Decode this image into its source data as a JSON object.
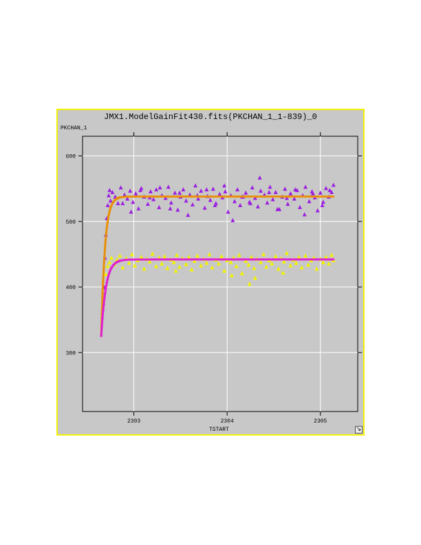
{
  "window": {
    "title": "JMX1.ModelGainFit430.fits(PKCHAN_1_1-839)_0",
    "resize_icon": "diagonal-arrow-icon",
    "background": "#c8c8c8",
    "border_color": "#f2f200"
  },
  "chart_data": {
    "type": "scatter",
    "title": "JMX1.ModelGainFit430.fits(PKCHAN_1_1-839)_0",
    "xlabel": "TSTART",
    "ylabel": "PKCHAN_1",
    "xlim": [
      2302.45,
      2305.4
    ],
    "ylim": [
      210,
      630
    ],
    "xticks": [
      2303,
      2304,
      2305
    ],
    "yticks": [
      300,
      400,
      500,
      600
    ],
    "grid": true,
    "series": [
      {
        "kind": "scatter",
        "marker": "triangle",
        "color": "#9b1fe0",
        "x": [
          2302.68,
          2302.69,
          2302.7,
          2302.71,
          2302.72,
          2302.73,
          2302.74,
          2302.75,
          2302.77,
          2302.8,
          2302.83,
          2302.86,
          2302.9,
          2302.93,
          2302.96,
          2302.99,
          2303.02,
          2303.05,
          2303.08,
          2303.11,
          2303.15,
          2303.18,
          2303.21,
          2303.24,
          2303.27,
          2303.3,
          2303.34,
          2303.37,
          2303.4,
          2303.44,
          2303.47,
          2303.5,
          2303.53,
          2303.56,
          2303.6,
          2303.63,
          2303.66,
          2303.69,
          2303.72,
          2303.76,
          2303.79,
          2303.82,
          2303.85,
          2303.88,
          2303.92,
          2303.95,
          2303.98,
          2304.01,
          2304.04,
          2304.08,
          2304.11,
          2304.14,
          2304.17,
          2304.2,
          2304.24,
          2304.27,
          2304.3,
          2304.33,
          2304.36,
          2304.4,
          2304.43,
          2304.46,
          2304.49,
          2304.52,
          2304.56,
          2304.59,
          2304.62,
          2304.65,
          2304.68,
          2304.72,
          2304.75,
          2304.78,
          2304.81,
          2304.84,
          2304.88,
          2304.91,
          2304.94,
          2304.97,
          2305.0,
          2305.03,
          2305.06,
          2305.09,
          2305.12,
          2305.14,
          2302.88,
          2302.97,
          2303.07,
          2303.17,
          2303.28,
          2303.39,
          2303.49,
          2303.58,
          2303.68,
          2303.78,
          2303.87,
          2303.97,
          2304.06,
          2304.16,
          2304.25,
          2304.35,
          2304.45,
          2304.54,
          2304.64,
          2304.73,
          2304.83,
          2304.92,
          2305.02,
          2305.1
        ],
        "y": [
          400,
          445,
          480,
          505,
          525,
          540,
          548,
          532,
          545,
          538,
          528,
          552,
          541,
          535,
          547,
          530,
          543,
          520,
          551,
          538,
          527,
          546,
          534,
          549,
          522,
          540,
          536,
          553,
          529,
          544,
          518,
          538,
          549,
          532,
          541,
          526,
          555,
          535,
          547,
          521,
          539,
          533,
          550,
          528,
          542,
          537,
          546,
          515,
          540,
          531,
          549,
          525,
          538,
          544,
          530,
          552,
          536,
          523,
          547,
          541,
          529,
          553,
          534,
          545,
          519,
          538,
          550,
          527,
          543,
          535,
          548,
          522,
          540,
          553,
          531,
          546,
          537,
          517,
          544,
          530,
          551,
          538,
          545,
          556,
          528,
          515,
          548,
          537,
          552,
          520,
          544,
          510,
          540,
          549,
          525,
          555,
          502,
          538,
          528,
          567,
          545,
          519,
          536,
          549,
          511,
          543,
          525,
          548
        ]
      },
      {
        "kind": "scatter",
        "marker": "triangle",
        "color": "#f2f200",
        "x": [
          2302.7,
          2302.72,
          2302.74,
          2302.76,
          2302.79,
          2302.82,
          2302.85,
          2302.88,
          2302.92,
          2302.95,
          2302.98,
          2303.01,
          2303.04,
          2303.08,
          2303.11,
          2303.14,
          2303.17,
          2303.2,
          2303.24,
          2303.27,
          2303.3,
          2303.33,
          2303.36,
          2303.4,
          2303.43,
          2303.46,
          2303.49,
          2303.52,
          2303.56,
          2303.59,
          2303.62,
          2303.65,
          2303.68,
          2303.72,
          2303.75,
          2303.78,
          2303.81,
          2303.84,
          2303.88,
          2303.91,
          2303.94,
          2303.97,
          2304.0,
          2304.04,
          2304.07,
          2304.1,
          2304.13,
          2304.16,
          2304.2,
          2304.23,
          2304.26,
          2304.29,
          2304.32,
          2304.36,
          2304.39,
          2304.42,
          2304.45,
          2304.48,
          2304.52,
          2304.55,
          2304.58,
          2304.61,
          2304.64,
          2304.68,
          2304.71,
          2304.74,
          2304.77,
          2304.8,
          2304.84,
          2304.87,
          2304.9,
          2304.93,
          2304.96,
          2305.0,
          2305.03,
          2305.06,
          2305.09,
          2305.12,
          2305.14,
          2304.24,
          2304.3,
          2303.45,
          2304.05,
          2304.6
        ],
        "y": [
          420,
          432,
          438,
          445,
          435,
          442,
          448,
          430,
          444,
          437,
          450,
          433,
          441,
          446,
          428,
          443,
          439,
          451,
          432,
          445,
          436,
          447,
          429,
          442,
          438,
          449,
          431,
          444,
          435,
          446,
          427,
          440,
          448,
          433,
          443,
          437,
          450,
          430,
          442,
          436,
          447,
          425,
          441,
          438,
          445,
          432,
          449,
          421,
          440,
          434,
          446,
          429,
          443,
          438,
          450,
          431,
          441,
          436,
          447,
          428,
          444,
          439,
          452,
          433,
          442,
          437,
          446,
          430,
          448,
          434,
          441,
          445,
          428,
          443,
          438,
          446,
          436,
          449,
          441,
          405,
          414,
          425,
          418,
          422
        ]
      },
      {
        "kind": "fit",
        "marker": "plus",
        "color": "#e8900a",
        "asymptote": 538,
        "start": 325,
        "t0": 2302.65,
        "tau": 0.04,
        "x_start": 2302.65,
        "x_end": 2305.15
      },
      {
        "kind": "fit",
        "marker": "plus",
        "color": "#e020d0",
        "asymptote": 442,
        "start": 325,
        "t0": 2302.65,
        "tau": 0.05,
        "x_start": 2302.65,
        "x_end": 2305.15
      }
    ]
  }
}
